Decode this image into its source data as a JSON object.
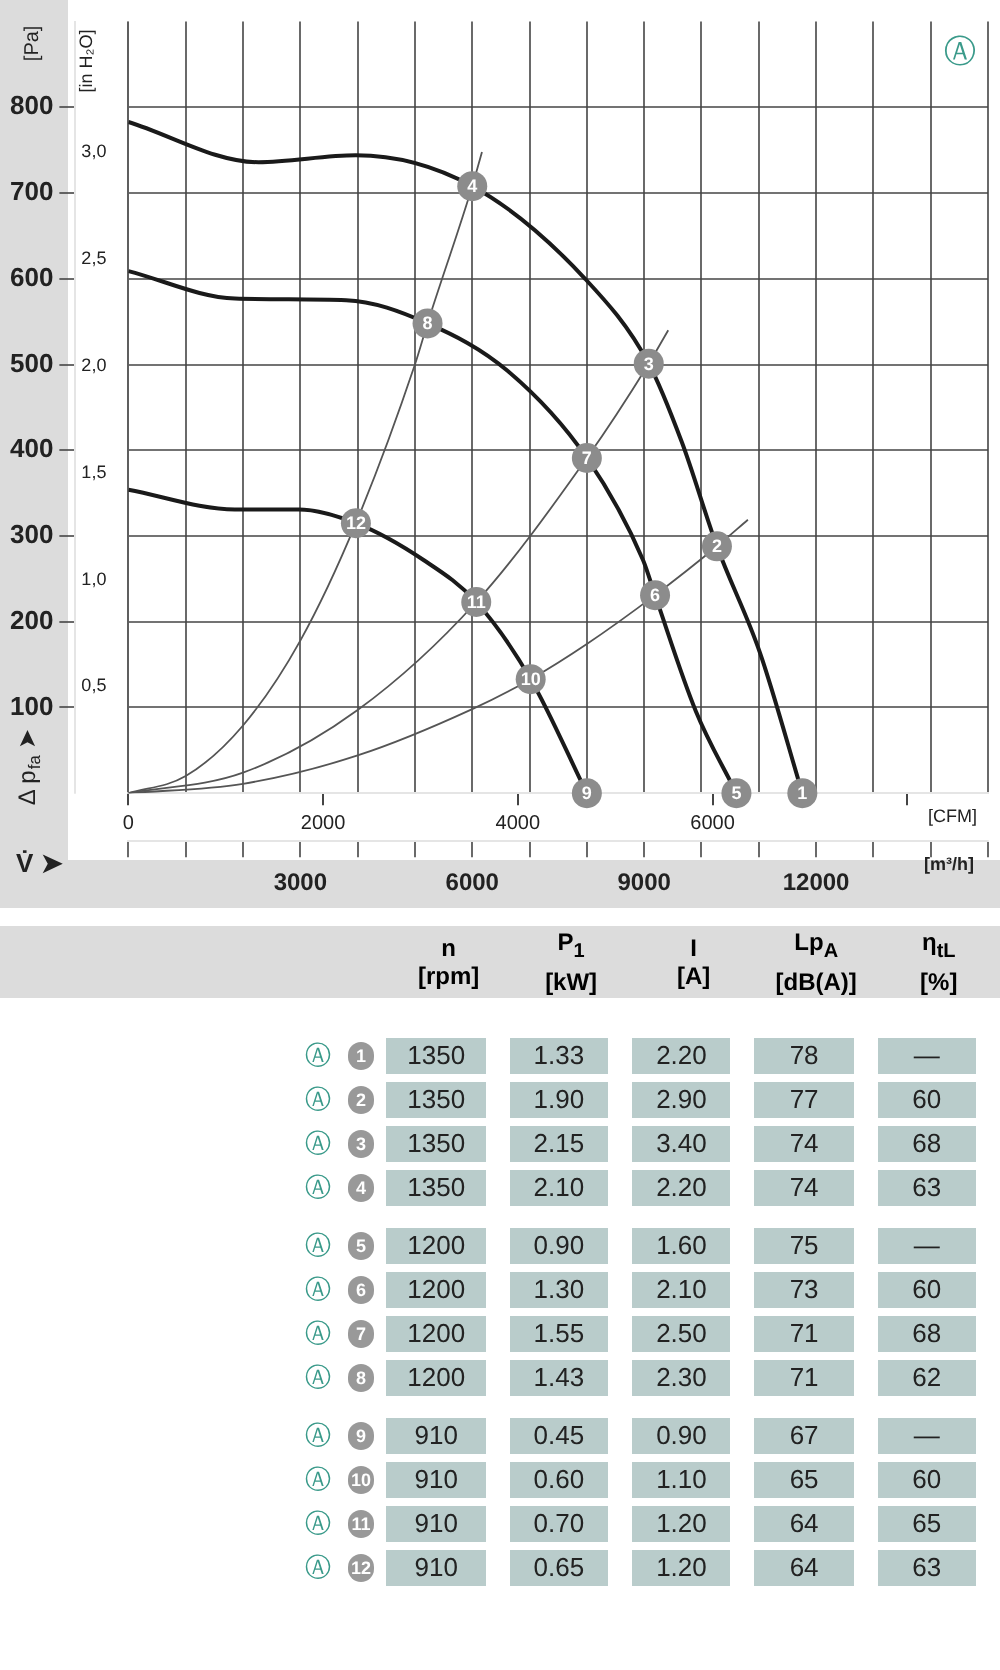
{
  "chart_data": {
    "type": "line",
    "ylabel": "[Pa]",
    "y2label": "[in H₂O]",
    "xlabel": "[m³/h]",
    "x2label": "[CFM]",
    "xlim": [
      0,
      15000
    ],
    "xticks": [
      {
        "value": 0,
        "label": null
      },
      {
        "value": 1000,
        "label": null
      },
      {
        "value": 2000,
        "label": null
      },
      3000,
      {
        "value": 4000,
        "label": null
      },
      {
        "value": 5000,
        "label": null
      },
      6000,
      {
        "value": 7000,
        "label": null
      },
      {
        "value": 8000,
        "label": null
      },
      9000,
      {
        "value": 10000,
        "label": null
      },
      {
        "value": 11000,
        "label": null
      },
      12000,
      {
        "value": 13000,
        "label": null
      },
      {
        "value": 14000,
        "label": null
      },
      {
        "value": 15000,
        "label": null
      }
    ],
    "x2lim": [
      0,
      8829
    ],
    "x2ticks": [
      0,
      2000,
      4000,
      6000,
      {
        "value": 8000,
        "label": null
      }
    ],
    "ylim": [
      0,
      900
    ],
    "yticks": [
      100,
      200,
      300,
      400,
      500,
      600,
      700,
      800
    ],
    "y2lim": [
      0,
      3.613
    ],
    "y2ticks": [
      {
        "value": 0.5,
        "label": "0,5"
      },
      {
        "value": 1.0,
        "label": "1,0"
      },
      {
        "value": 1.5,
        "label": "1,5"
      },
      {
        "value": 2.0,
        "label": "2,0"
      },
      {
        "value": 2.5,
        "label": "2,5"
      },
      {
        "value": 3.0,
        "label": "3,0"
      }
    ],
    "grid": true,
    "legend": false,
    "line_style": "solid",
    "series": [
      {
        "color": "#1a1a1a",
        "x": [
          0,
          2270,
          3970,
          6000,
          7970,
          9080,
          9660,
          10270,
          11020,
          11760
        ],
        "values": [
          783,
          736,
          744,
          708,
          600,
          501,
          409,
          288,
          164,
          0
        ]
      },
      {
        "color": "#1a1a1a",
        "x": [
          0,
          1860,
          3800,
          5220,
          6610,
          8000,
          8980,
          9190,
          9900,
          10610
        ],
        "values": [
          609,
          577,
          575,
          548,
          493,
          391,
          272,
          231,
          96,
          0
        ]
      },
      {
        "color": "#1a1a1a",
        "x": [
          0,
          1860,
          2980,
          3970,
          5150,
          6070,
          7020,
          8000
        ],
        "values": [
          354,
          331,
          331,
          315,
          272,
          223,
          133,
          0
        ]
      },
      {
        "color": "#555555",
        "x": [
          0,
          1000,
          2000,
          3000,
          3970,
          5000,
          5220,
          6000,
          6170
        ],
        "values": [
          0,
          20,
          79,
          178,
          315,
          500,
          548,
          708,
          748
        ]
      },
      {
        "color": "#555555",
        "x": [
          0,
          2000,
          4000,
          6070,
          8000,
          9080,
          9420
        ],
        "values": [
          0,
          24,
          97,
          223,
          391,
          501,
          540
        ]
      },
      {
        "color": "#555555",
        "x": [
          0,
          2000,
          4000,
          6000,
          7020,
          8000,
          9190,
          10270,
          10810
        ],
        "values": [
          0,
          11,
          44,
          98,
          133,
          174,
          231,
          288,
          319
        ]
      }
    ],
    "annotations": [
      {
        "text": "1",
        "x": 11760,
        "y": 0
      },
      {
        "text": "2",
        "x": 10270,
        "y": 288
      },
      {
        "text": "3",
        "x": 9080,
        "y": 501
      },
      {
        "text": "4",
        "x": 6000,
        "y": 708
      },
      {
        "text": "5",
        "x": 10610,
        "y": 0
      },
      {
        "text": "6",
        "x": 9190,
        "y": 231
      },
      {
        "text": "7",
        "x": 8000,
        "y": 391
      },
      {
        "text": "8",
        "x": 5220,
        "y": 548
      },
      {
        "text": "9",
        "x": 8000,
        "y": 0
      },
      {
        "text": "10",
        "x": 7020,
        "y": 133
      },
      {
        "text": "11",
        "x": 6070,
        "y": 223
      },
      {
        "text": "12",
        "x": 3970,
        "y": 315
      },
      "Δ p$_{fa}$ ➤",
      "V̇ ➤",
      "Ⓐ",
      "n [rpm]",
      "P$_{1}$ [kW]",
      "I [A]",
      "Lp$_{A}$ [dB(A)]",
      "η$_{tL}$ [%]",
      "Ⓐ 1 1350 1.33 2.20 78 —",
      "Ⓐ 2 1350 1.90 2.90 77 60",
      "Ⓐ 3 1350 2.15 3.40 74 68",
      "Ⓐ 4 1350 2.10 2.20 74 63",
      "Ⓐ 5 1200 0.90 1.60 75 —",
      "Ⓐ 6 1200 1.30 2.10 73 60",
      "Ⓐ 7 1200 1.55 2.50 71 68",
      "Ⓐ 8 1200 1.43 2.30 71 62",
      "Ⓐ 9 910 0.45 0.90 67 —",
      "Ⓐ 10 910 0.60 1.10 65 60",
      "Ⓐ 11 910 0.70 1.20 64 65",
      "Ⓐ 12 910 0.65 1.20 64 63"
    ]
  }
}
